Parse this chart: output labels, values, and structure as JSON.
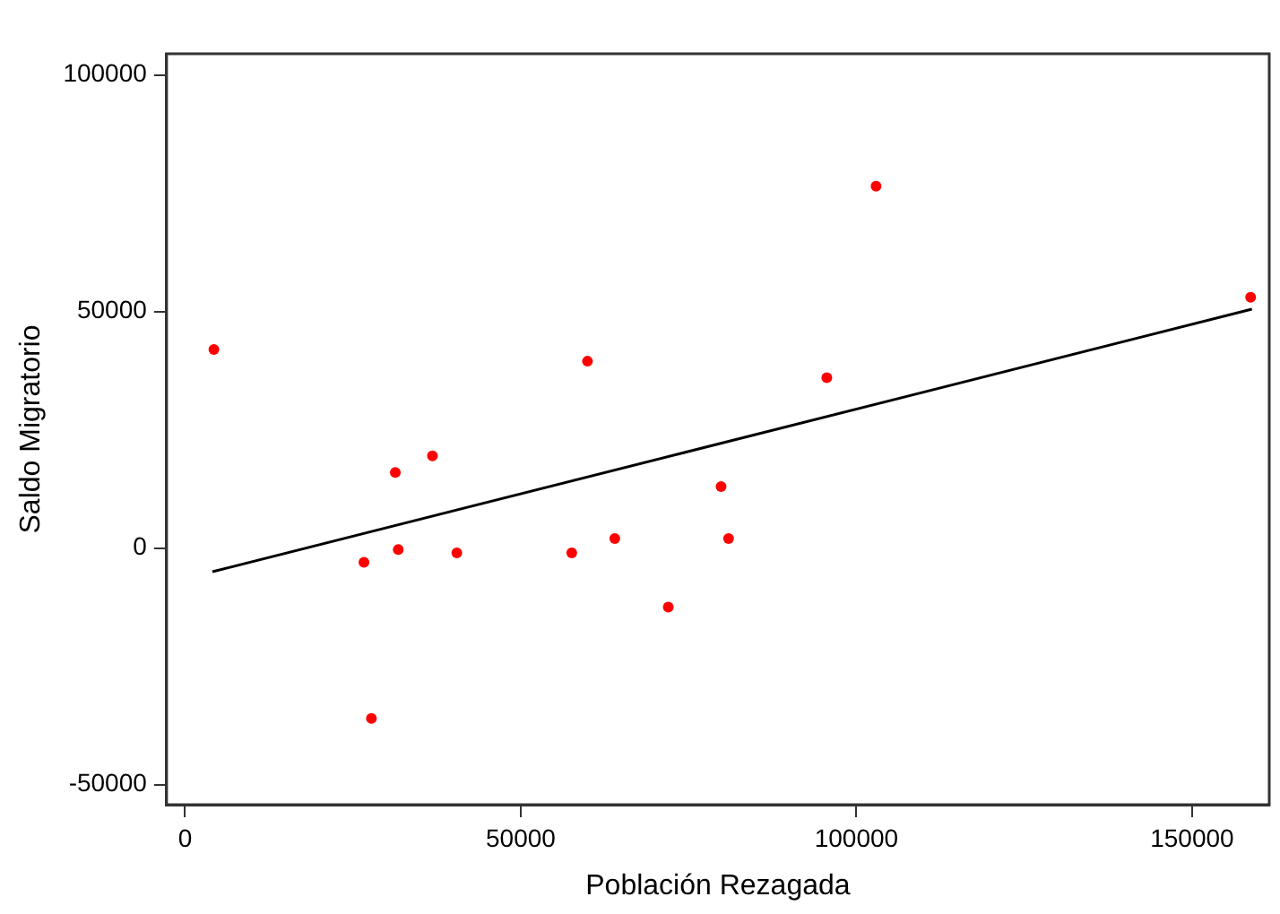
{
  "chart_data": {
    "type": "scatter",
    "xlabel": "Población Rezagada",
    "ylabel": "Saldo Migratorio",
    "series": [
      {
        "type": "scatter",
        "color": "#ff0000",
        "marker": "circle",
        "x": [
          4300,
          26650,
          27760,
          31320,
          31760,
          36850,
          40480,
          57600,
          59940,
          64010,
          71980,
          79840,
          80960,
          95590,
          102930,
          158720
        ],
        "values": [
          42000,
          -3000,
          -36000,
          16000,
          -300,
          19500,
          -1000,
          -1000,
          39500,
          2000,
          -12500,
          13000,
          2000,
          36000,
          76500,
          53000
        ]
      },
      {
        "type": "line",
        "color": "#000000",
        "marker": "none",
        "line_style": "solid",
        "x": [
          4070,
          158900
        ],
        "values": [
          -5000,
          50500
        ]
      }
    ],
    "xlim": [
      -2750,
      161490
    ],
    "ylim": [
      -54250,
      104500
    ],
    "xticks": [
      0,
      50000,
      100000,
      150000
    ],
    "yticks": [
      -50000,
      0,
      50000,
      100000
    ],
    "grid": false,
    "legend": false
  }
}
